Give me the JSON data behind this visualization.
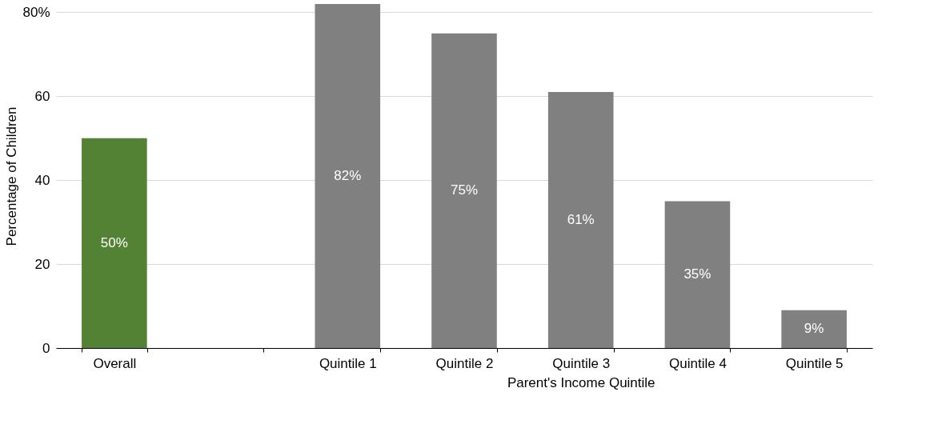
{
  "chart_data": {
    "type": "bar",
    "xlabel": "Parent's Income Quintile",
    "ylabel": "Percentage of Children",
    "categories": [
      "Overall",
      null,
      "Quintile 1",
      "Quintile 2",
      "Quintile 3",
      "Quintile 4",
      "Quintile 5"
    ],
    "values": [
      50,
      null,
      82,
      75,
      61,
      35,
      9
    ],
    "colors": [
      "#548235",
      "#808080",
      "#808080",
      "#808080",
      "#808080",
      "#808080",
      "#808080"
    ],
    "value_labels": [
      "50%",
      null,
      "82%",
      "75%",
      "61%",
      "35%",
      "9%"
    ],
    "ylim": [
      0,
      82
    ],
    "yticks": [
      0,
      20,
      40,
      60,
      {
        "value": 80,
        "label": "80%"
      }
    ],
    "grid": "y"
  }
}
